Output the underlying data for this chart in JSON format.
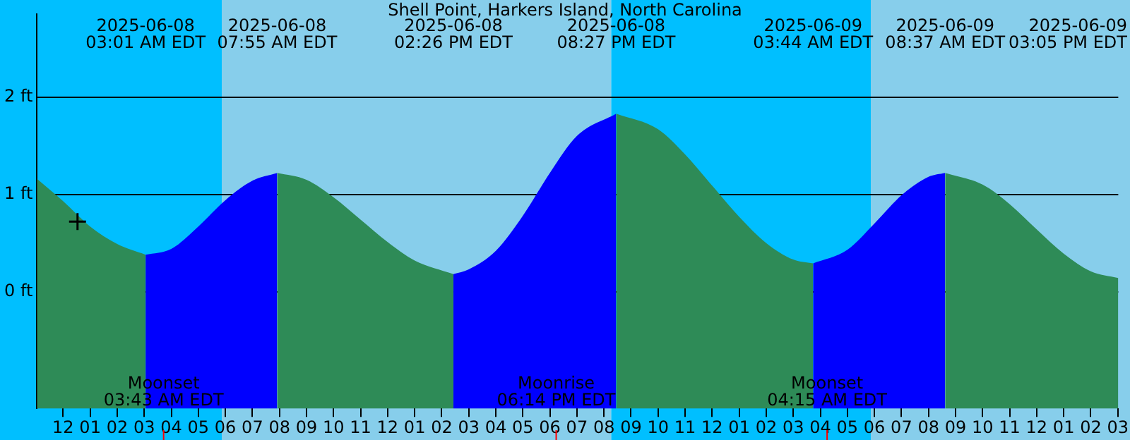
{
  "chart_data": {
    "type": "area",
    "title": "Shell Point, Harkers Island, North Carolina",
    "x": [
      "2025-06-07T23:02",
      "2025-06-08T00:00",
      "2025-06-08T01:00",
      "2025-06-08T02:00",
      "2025-06-08T03:03",
      "2025-06-08T04:00",
      "2025-06-08T05:00",
      "2025-06-08T06:00",
      "2025-06-08T07:00",
      "2025-06-08T07:55",
      "2025-06-08T09:00",
      "2025-06-08T10:00",
      "2025-06-08T11:00",
      "2025-06-08T12:00",
      "2025-06-08T13:00",
      "2025-06-08T14:26",
      "2025-06-08T15:00",
      "2025-06-08T16:00",
      "2025-06-08T17:00",
      "2025-06-08T18:00",
      "2025-06-08T19:00",
      "2025-06-08T20:27",
      "2025-06-08T22:00",
      "2025-06-08T23:00",
      "2025-06-09T00:00",
      "2025-06-09T01:00",
      "2025-06-09T02:00",
      "2025-06-09T03:00",
      "2025-06-09T03:44",
      "2025-06-09T05:00",
      "2025-06-09T06:00",
      "2025-06-09T07:00",
      "2025-06-09T08:00",
      "2025-06-09T08:37",
      "2025-06-09T10:00",
      "2025-06-09T11:00",
      "2025-06-09T12:00",
      "2025-06-09T13:00",
      "2025-06-09T14:00",
      "2025-06-09T15:01"
    ],
    "series": [
      {
        "color": "#2e8b57",
        "values": [
          1.16,
          0.93,
          0.67,
          0.49,
          0.38,
          null,
          null,
          null,
          null,
          1.22,
          1.15,
          0.97,
          0.74,
          0.51,
          0.32,
          0.18,
          null,
          null,
          null,
          null,
          null,
          1.83,
          1.67,
          1.41,
          1.09,
          0.77,
          0.5,
          0.33,
          0.29,
          null,
          null,
          null,
          null,
          1.22,
          1.1,
          0.9,
          0.64,
          0.39,
          0.21,
          0.14
        ]
      },
      {
        "color": "#0000ff",
        "values": [
          null,
          null,
          null,
          null,
          0.38,
          0.44,
          0.67,
          0.94,
          1.14,
          1.22,
          null,
          null,
          null,
          null,
          null,
          0.18,
          0.23,
          0.42,
          0.78,
          1.22,
          1.6,
          1.83,
          null,
          null,
          null,
          null,
          null,
          null,
          0.29,
          0.43,
          0.7,
          0.99,
          1.18,
          1.22,
          null,
          null,
          null,
          null,
          null,
          null
        ]
      },
      {
        "type": "scatter",
        "color": "#000000",
        "marker": "cross",
        "x": [
          "2025-06-08T00:32"
        ],
        "values": [
          0.72
        ]
      }
    ],
    "xlim": [
      "2025-06-07T23:02",
      "2025-06-09T15:01"
    ],
    "xticks": [
      {
        "value": "2025-06-08T00:00",
        "label": "12"
      },
      {
        "value": "2025-06-08T01:00",
        "label": "01"
      },
      {
        "value": "2025-06-08T02:00",
        "label": "02"
      },
      {
        "value": "2025-06-08T03:00",
        "label": "03"
      },
      {
        "value": "2025-06-08T04:00",
        "label": "04"
      },
      {
        "value": "2025-06-08T05:00",
        "label": "05"
      },
      {
        "value": "2025-06-08T06:00",
        "label": "06"
      },
      {
        "value": "2025-06-08T07:00",
        "label": "07"
      },
      {
        "value": "2025-06-08T08:00",
        "label": "08"
      },
      {
        "value": "2025-06-08T09:00",
        "label": "09"
      },
      {
        "value": "2025-06-08T10:00",
        "label": "10"
      },
      {
        "value": "2025-06-08T11:00",
        "label": "11"
      },
      {
        "value": "2025-06-08T12:00",
        "label": "12"
      },
      {
        "value": "2025-06-08T13:00",
        "label": "01"
      },
      {
        "value": "2025-06-08T14:00",
        "label": "02"
      },
      {
        "value": "2025-06-08T15:00",
        "label": "03"
      },
      {
        "value": "2025-06-08T16:00",
        "label": "04"
      },
      {
        "value": "2025-06-08T17:00",
        "label": "05"
      },
      {
        "value": "2025-06-08T18:00",
        "label": "06"
      },
      {
        "value": "2025-06-08T19:00",
        "label": "07"
      },
      {
        "value": "2025-06-08T20:00",
        "label": "08"
      },
      {
        "value": "2025-06-08T21:00",
        "label": "09"
      },
      {
        "value": "2025-06-08T22:00",
        "label": "10"
      },
      {
        "value": "2025-06-08T23:00",
        "label": "11"
      },
      {
        "value": "2025-06-09T00:00",
        "label": "12"
      },
      {
        "value": "2025-06-09T01:00",
        "label": "01"
      },
      {
        "value": "2025-06-09T02:00",
        "label": "02"
      },
      {
        "value": "2025-06-09T03:00",
        "label": "03"
      },
      {
        "value": "2025-06-09T04:00",
        "label": "04"
      },
      {
        "value": "2025-06-09T05:00",
        "label": "05"
      },
      {
        "value": "2025-06-09T06:00",
        "label": "06"
      },
      {
        "value": "2025-06-09T07:00",
        "label": "07"
      },
      {
        "value": "2025-06-09T08:00",
        "label": "08"
      },
      {
        "value": "2025-06-09T09:00",
        "label": "09"
      },
      {
        "value": "2025-06-09T10:00",
        "label": "10"
      },
      {
        "value": "2025-06-09T11:00",
        "label": "11"
      },
      {
        "value": "2025-06-09T12:00",
        "label": "12"
      },
      {
        "value": "2025-06-09T13:00",
        "label": "01"
      },
      {
        "value": "2025-06-09T14:00",
        "label": "02"
      },
      {
        "value": "2025-06-09T15:00",
        "label": "03"
      }
    ],
    "ylim": [
      -1.2,
      2.85
    ],
    "yticks": [
      {
        "value": 0,
        "label": "0 ft"
      },
      {
        "value": 1,
        "label": "1 ft"
      },
      {
        "value": 2,
        "label": "2 ft"
      }
    ],
    "grid": "y",
    "bands": [
      {
        "axis": "x",
        "from": "2025-06-07T23:02",
        "to": "2025-06-08T05:52",
        "color": "#00bfff"
      },
      {
        "axis": "x",
        "from": "2025-06-08T05:52",
        "to": "2025-06-08T20:16",
        "color": "#87ceeb"
      },
      {
        "axis": "x",
        "from": "2025-06-08T20:16",
        "to": "2025-06-09T05:52",
        "color": "#00bfff"
      },
      {
        "axis": "x",
        "from": "2025-06-09T05:52",
        "to": "2025-06-09T15:01",
        "color": "#87ceeb"
      }
    ],
    "ref_lines": [
      {
        "axis": "x",
        "value": "2025-06-08T03:43",
        "label": "Moonset\n03:43 AM EDT",
        "color": "#ff0000"
      },
      {
        "axis": "x",
        "value": "2025-06-08T18:14",
        "label": "Moonrise\n06:14 PM EDT",
        "color": "#ff0000"
      },
      {
        "axis": "x",
        "value": "2025-06-09T04:15",
        "label": "Moonset\n04:15 AM EDT",
        "color": "#ff0000"
      }
    ],
    "annotations": [
      "2025-06-08\n03:01 AM EDT",
      "2025-06-08\n07:55 AM EDT",
      "2025-06-08\n02:26 PM EDT",
      "2025-06-08\n08:27 PM EDT",
      "2025-06-09\n03:44 AM EDT",
      "2025-06-09\n08:37 AM EDT",
      "2025-06-09\n03:05 PM EDT"
    ]
  }
}
